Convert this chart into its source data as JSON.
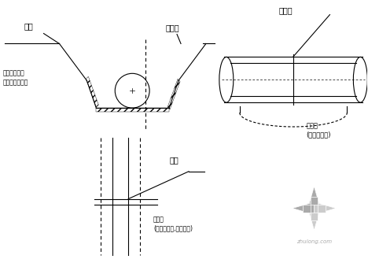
{
  "bg_color": "#ffffff",
  "lc": "#000000",
  "lw": 0.8,
  "label_地平": "地平",
  "label_排距管": "排距管",
  "label_放坡比": "放坡比及坡度\n现浇及二成次之",
  "label_钎对口": "钎对口",
  "label_深作坑": "深作坑\n(积水坑十水)",
  "label_钎对": "钎对",
  "label_支护体": "支护体\n(空腹地承架,十点积水)"
}
